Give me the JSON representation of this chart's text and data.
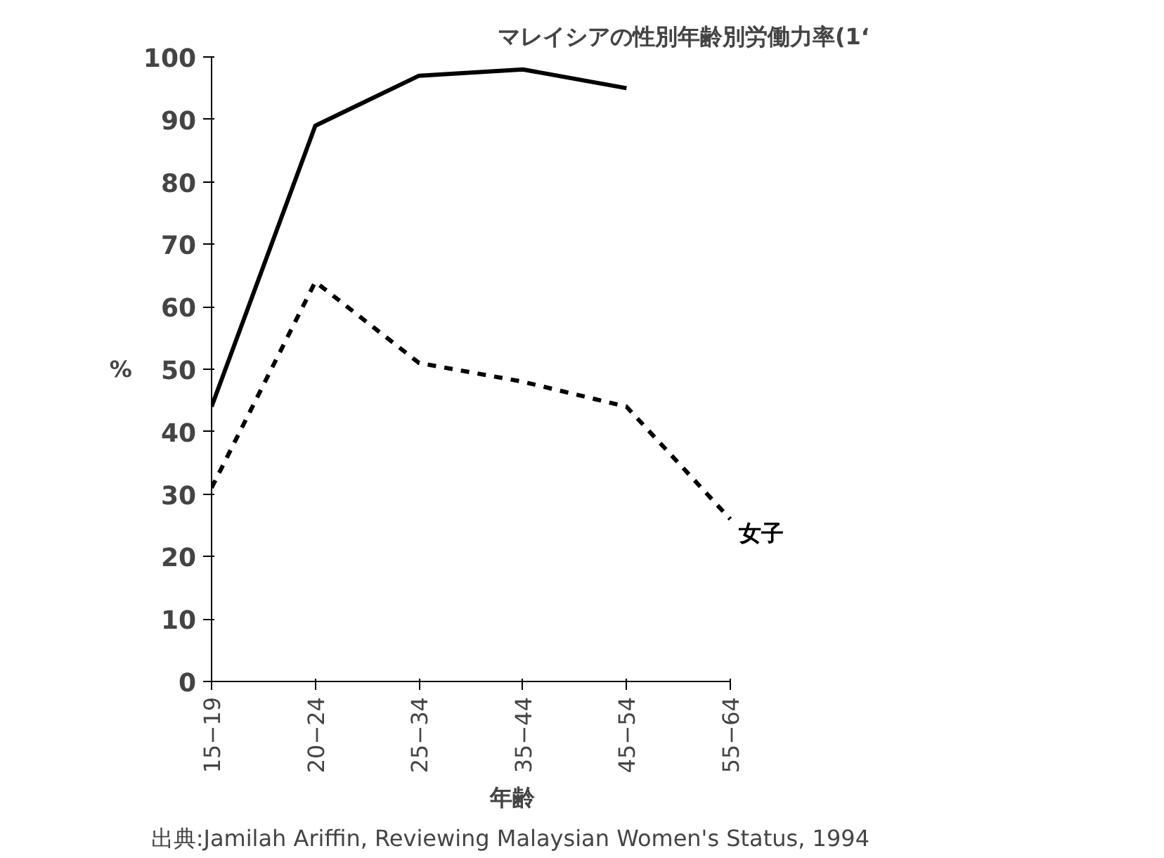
{
  "chart_data": {
    "type": "line",
    "title": "マレイシアの性別年齢別労働力率(1‘",
    "xlabel": "年齢",
    "ylabel": "%",
    "categories": [
      "15−19",
      "20−24",
      "25−34",
      "35−44",
      "45−54",
      "55−64"
    ],
    "series": [
      {
        "color": "#000000",
        "line_style": "solid",
        "values": [
          44,
          89,
          97,
          98,
          95,
          null
        ]
      },
      {
        "name": "女子",
        "color": "#000000",
        "line_style": "dashed",
        "values": [
          31,
          64,
          51,
          48,
          44,
          26
        ]
      }
    ],
    "ylim": [
      0,
      100
    ],
    "yticks": [
      0,
      10,
      20,
      30,
      40,
      50,
      60,
      70,
      80,
      90,
      100
    ],
    "grid": false,
    "marker": "none",
    "annotations": [
      "出典:Jamilah Ariffin, Reviewing Malaysian Women's Status, 1994"
    ]
  }
}
